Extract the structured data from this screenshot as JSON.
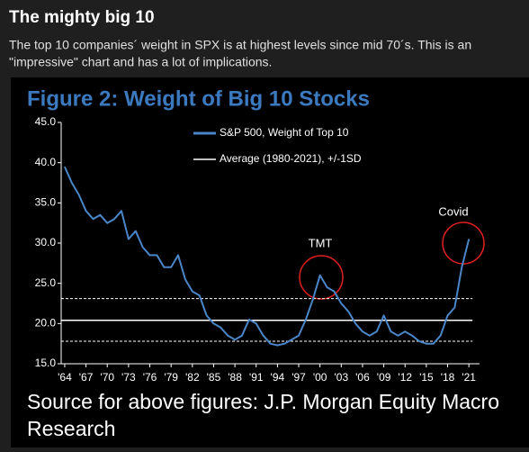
{
  "header": {
    "title": "The mighty big 10",
    "text_lines": [
      "The top 10 companies´ weight in SPX is at highest levels since mid 70´s. This is an",
      "\"impressive\" chart and has a lot of implications."
    ]
  },
  "chart_data": {
    "type": "line",
    "title": "Figure 2: Weight of Big 10 Stocks",
    "x": [
      1964,
      1965,
      1966,
      1967,
      1968,
      1969,
      1970,
      1971,
      1972,
      1973,
      1974,
      1975,
      1976,
      1977,
      1978,
      1979,
      1980,
      1981,
      1982,
      1983,
      1984,
      1985,
      1986,
      1987,
      1988,
      1989,
      1990,
      1991,
      1992,
      1993,
      1994,
      1995,
      1996,
      1997,
      1998,
      1999,
      2000,
      2001,
      2002,
      2003,
      2004,
      2005,
      2006,
      2007,
      2008,
      2009,
      2010,
      2011,
      2012,
      2013,
      2014,
      2015,
      2016,
      2017,
      2018,
      2019,
      2020,
      2021
    ],
    "series": [
      {
        "name": "S&P 500, Weight of Top 10",
        "color": "#4a86c8",
        "values": [
          39.5,
          37.5,
          36,
          34,
          33,
          33.5,
          32.5,
          33,
          34,
          30.5,
          31.5,
          29.5,
          28.5,
          28.5,
          27,
          27,
          28.5,
          25.5,
          24,
          23.5,
          21,
          20,
          19.5,
          18.5,
          18,
          18.5,
          20.5,
          20,
          18.5,
          17.5,
          17.3,
          17.5,
          18,
          18.5,
          20.5,
          23,
          26,
          24.5,
          24,
          22.5,
          21.5,
          20,
          19,
          18.5,
          19,
          21,
          19,
          18.5,
          19,
          18.5,
          17.8,
          17.5,
          17.5,
          18.5,
          21,
          22,
          27,
          30.5
        ]
      }
    ],
    "reference": {
      "name": "Average (1980-2021), +/-1SD",
      "color": "#ffffff",
      "average": 20.4,
      "band": [
        17.8,
        23.1
      ]
    },
    "annotations": [
      "TMT",
      "Covid"
    ],
    "xlim": [
      1963.5,
      2022.5
    ],
    "xticks": [
      {
        "value": 1964,
        "label": "'64"
      },
      {
        "value": 1967,
        "label": "'67"
      },
      {
        "value": 1970,
        "label": "'70"
      },
      {
        "value": 1973,
        "label": "'73"
      },
      {
        "value": 1976,
        "label": "'76"
      },
      {
        "value": 1979,
        "label": "'79"
      },
      {
        "value": 1982,
        "label": "'82"
      },
      {
        "value": 1985,
        "label": "'85"
      },
      {
        "value": 1988,
        "label": "'88"
      },
      {
        "value": 1991,
        "label": "'91"
      },
      {
        "value": 1994,
        "label": "'94"
      },
      {
        "value": 1997,
        "label": "'97"
      },
      {
        "value": 2000,
        "label": "'00"
      },
      {
        "value": 2003,
        "label": "'03"
      },
      {
        "value": 2006,
        "label": "'06"
      },
      {
        "value": 2009,
        "label": "'09"
      },
      {
        "value": 2012,
        "label": "'12"
      },
      {
        "value": 2015,
        "label": "'15"
      },
      {
        "value": 2018,
        "label": "'18"
      },
      {
        "value": 2021,
        "label": "'21"
      }
    ],
    "ylim": [
      15,
      45
    ],
    "yticks": [
      {
        "value": 15,
        "label": "15.0"
      },
      {
        "value": 20,
        "label": "20.0"
      },
      {
        "value": 25,
        "label": "25.0"
      },
      {
        "value": 30,
        "label": "30.0"
      },
      {
        "value": 35,
        "label": "35.0"
      },
      {
        "value": 40,
        "label": "40.0"
      },
      {
        "value": 45,
        "label": "45.0"
      }
    ]
  },
  "source_lines": [
    "Source for above figures: J.P. Morgan Equity Macro",
    "Research"
  ]
}
